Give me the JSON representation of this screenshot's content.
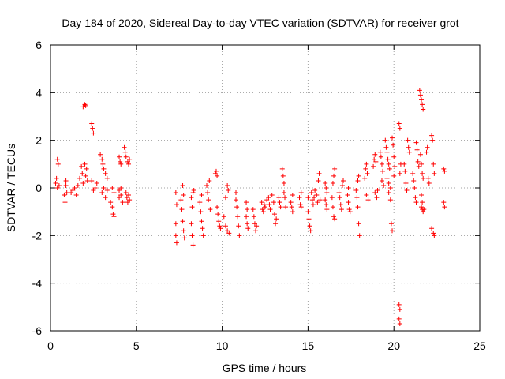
{
  "chart_data": {
    "type": "scatter",
    "title": "Day 184 of 2020, Sidereal Day-to-day VTEC variation (SDTVAR) for receiver grot",
    "xlabel": "GPS time / hours",
    "ylabel": "SDTVAR / TECUs",
    "xlim": [
      0,
      25
    ],
    "ylim": [
      -6,
      6
    ],
    "xticks": [
      0,
      5,
      10,
      15,
      20,
      25
    ],
    "xtick_labels": [
      "0",
      "5",
      "10",
      "15",
      "20",
      "25"
    ],
    "yticks": [
      -6,
      -4,
      -2,
      0,
      2,
      4,
      6
    ],
    "ytick_labels": [
      "-6",
      "-4",
      "-2",
      "0",
      "2",
      "4",
      "6"
    ],
    "grid": true,
    "marker": "plus",
    "color": "#ff0000",
    "series": [
      {
        "name": "SDTVAR",
        "points": [
          [
            0.3,
            0.2
          ],
          [
            0.35,
            0.4
          ],
          [
            0.4,
            1.2
          ],
          [
            0.45,
            1.0
          ],
          [
            0.5,
            0.1
          ],
          [
            0.4,
            0.0
          ],
          [
            0.8,
            -0.3
          ],
          [
            0.85,
            -0.6
          ],
          [
            0.9,
            0.1
          ],
          [
            0.95,
            -0.2
          ],
          [
            0.9,
            0.3
          ],
          [
            1.2,
            -0.2
          ],
          [
            1.3,
            -0.1
          ],
          [
            1.4,
            0.0
          ],
          [
            1.5,
            -0.3
          ],
          [
            1.6,
            0.1
          ],
          [
            1.7,
            0.4
          ],
          [
            1.8,
            0.9
          ],
          [
            1.85,
            0.6
          ],
          [
            1.9,
            0.2
          ],
          [
            2.0,
            1.0
          ],
          [
            2.05,
            0.5
          ],
          [
            2.1,
            0.8
          ],
          [
            2.15,
            0.3
          ],
          [
            1.9,
            3.4
          ],
          [
            2.0,
            3.5
          ],
          [
            2.05,
            3.45
          ],
          [
            2.4,
            2.7
          ],
          [
            2.45,
            2.5
          ],
          [
            2.5,
            2.3
          ],
          [
            2.4,
            0.3
          ],
          [
            2.5,
            -0.1
          ],
          [
            2.6,
            0.0
          ],
          [
            2.7,
            0.2
          ],
          [
            2.9,
            1.4
          ],
          [
            3.0,
            1.2
          ],
          [
            3.05,
            1.0
          ],
          [
            3.1,
            0.8
          ],
          [
            3.2,
            0.6
          ],
          [
            3.3,
            0.4
          ],
          [
            3.0,
            -0.2
          ],
          [
            3.1,
            0.0
          ],
          [
            3.2,
            -0.4
          ],
          [
            3.3,
            -0.1
          ],
          [
            3.5,
            -0.6
          ],
          [
            3.6,
            -0.8
          ],
          [
            3.65,
            -1.1
          ],
          [
            3.7,
            -1.2
          ],
          [
            3.6,
            0.0
          ],
          [
            3.7,
            -0.2
          ],
          [
            4.0,
            -0.4
          ],
          [
            4.1,
            -0.3
          ],
          [
            4.2,
            -0.6
          ],
          [
            4.1,
            0.0
          ],
          [
            4.0,
            -0.1
          ],
          [
            4.0,
            1.3
          ],
          [
            4.05,
            1.1
          ],
          [
            4.1,
            1.0
          ],
          [
            4.3,
            1.7
          ],
          [
            4.35,
            1.5
          ],
          [
            4.4,
            1.3
          ],
          [
            4.5,
            1.1
          ],
          [
            4.55,
            1.0
          ],
          [
            4.6,
            1.2
          ],
          [
            4.4,
            -0.2
          ],
          [
            4.45,
            -0.4
          ],
          [
            4.5,
            -0.6
          ],
          [
            4.55,
            -0.3
          ],
          [
            4.6,
            -0.5
          ],
          [
            7.3,
            -1.5
          ],
          [
            7.3,
            -2.0
          ],
          [
            7.35,
            -2.3
          ],
          [
            7.3,
            -0.2
          ],
          [
            7.35,
            -0.7
          ],
          [
            7.6,
            -0.5
          ],
          [
            7.65,
            -0.9
          ],
          [
            7.7,
            -1.4
          ],
          [
            7.75,
            -1.8
          ],
          [
            7.8,
            -2.1
          ],
          [
            7.7,
            0.1
          ],
          [
            7.75,
            -0.3
          ],
          [
            8.2,
            -1.5
          ],
          [
            8.25,
            -2.0
          ],
          [
            8.3,
            -2.4
          ],
          [
            8.2,
            -0.4
          ],
          [
            8.25,
            -0.8
          ],
          [
            8.3,
            -0.2
          ],
          [
            8.35,
            -0.1
          ],
          [
            8.7,
            -0.6
          ],
          [
            8.75,
            -1.0
          ],
          [
            8.8,
            -1.4
          ],
          [
            8.85,
            -1.7
          ],
          [
            8.9,
            -2.0
          ],
          [
            8.8,
            -0.3
          ],
          [
            9.1,
            0.1
          ],
          [
            9.15,
            -0.2
          ],
          [
            9.2,
            -0.5
          ],
          [
            9.3,
            -0.9
          ],
          [
            9.25,
            0.3
          ],
          [
            9.6,
            0.6
          ],
          [
            9.65,
            0.7
          ],
          [
            9.7,
            0.5
          ],
          [
            9.7,
            -0.8
          ],
          [
            9.75,
            -1.1
          ],
          [
            9.8,
            -1.4
          ],
          [
            9.85,
            -1.6
          ],
          [
            9.9,
            -1.7
          ],
          [
            10.1,
            -1.2
          ],
          [
            10.2,
            -1.6
          ],
          [
            10.3,
            -1.8
          ],
          [
            10.4,
            -1.9
          ],
          [
            10.2,
            -0.4
          ],
          [
            10.3,
            0.1
          ],
          [
            10.35,
            -0.1
          ],
          [
            10.8,
            -0.5
          ],
          [
            10.85,
            -0.8
          ],
          [
            10.9,
            -1.2
          ],
          [
            10.95,
            -1.6
          ],
          [
            11.0,
            -2.0
          ],
          [
            10.8,
            -0.2
          ],
          [
            11.4,
            -1.2
          ],
          [
            11.45,
            -1.5
          ],
          [
            11.5,
            -1.7
          ],
          [
            11.4,
            -0.6
          ],
          [
            11.45,
            -0.9
          ],
          [
            11.8,
            -0.9
          ],
          [
            11.85,
            -1.2
          ],
          [
            11.9,
            -1.5
          ],
          [
            11.95,
            -1.8
          ],
          [
            12.0,
            -1.6
          ],
          [
            12.3,
            -0.6
          ],
          [
            12.35,
            -0.9
          ],
          [
            12.4,
            -1.0
          ],
          [
            12.5,
            -0.8
          ],
          [
            12.45,
            -0.7
          ],
          [
            12.6,
            -0.5
          ],
          [
            12.7,
            -0.4
          ],
          [
            12.75,
            -0.7
          ],
          [
            12.8,
            -0.9
          ],
          [
            12.9,
            -0.3
          ],
          [
            13.0,
            -0.6
          ],
          [
            13.05,
            -1.1
          ],
          [
            13.1,
            -1.5
          ],
          [
            13.15,
            -1.3
          ],
          [
            13.3,
            -0.4
          ],
          [
            13.35,
            -0.6
          ],
          [
            13.4,
            -0.8
          ],
          [
            13.5,
            0.8
          ],
          [
            13.55,
            0.5
          ],
          [
            13.6,
            0.2
          ],
          [
            13.6,
            -0.2
          ],
          [
            13.65,
            -0.4
          ],
          [
            13.7,
            -0.8
          ],
          [
            14.0,
            -0.6
          ],
          [
            14.05,
            -0.8
          ],
          [
            14.1,
            -1.0
          ],
          [
            14.1,
            -0.3
          ],
          [
            14.5,
            -0.4
          ],
          [
            14.55,
            -0.7
          ],
          [
            14.6,
            -0.8
          ],
          [
            14.6,
            -0.2
          ],
          [
            15.0,
            -1.0
          ],
          [
            15.05,
            -1.3
          ],
          [
            15.1,
            -1.6
          ],
          [
            15.15,
            -1.8
          ],
          [
            15.0,
            -0.4
          ],
          [
            15.2,
            -0.2
          ],
          [
            15.25,
            -0.5
          ],
          [
            15.3,
            -0.7
          ],
          [
            15.35,
            -0.4
          ],
          [
            15.4,
            -0.1
          ],
          [
            15.5,
            -0.3
          ],
          [
            15.55,
            -0.6
          ],
          [
            15.6,
            0.3
          ],
          [
            15.65,
            0.6
          ],
          [
            15.7,
            -0.5
          ],
          [
            16.0,
            0.2
          ],
          [
            16.05,
            0.0
          ],
          [
            16.1,
            -0.2
          ],
          [
            16.0,
            -0.5
          ],
          [
            16.05,
            -0.7
          ],
          [
            16.1,
            -0.9
          ],
          [
            16.4,
            -0.4
          ],
          [
            16.45,
            -0.8
          ],
          [
            16.5,
            -1.2
          ],
          [
            16.55,
            -1.3
          ],
          [
            16.45,
            0.2
          ],
          [
            16.5,
            0.5
          ],
          [
            16.55,
            0.8
          ],
          [
            16.8,
            -0.2
          ],
          [
            16.85,
            -0.4
          ],
          [
            16.9,
            -0.7
          ],
          [
            16.95,
            -0.9
          ],
          [
            17.0,
            0.1
          ],
          [
            17.05,
            0.3
          ],
          [
            17.3,
            -0.3
          ],
          [
            17.35,
            -0.6
          ],
          [
            17.4,
            -0.9
          ],
          [
            17.45,
            -1.0
          ],
          [
            17.35,
            0.0
          ],
          [
            17.8,
            -0.1
          ],
          [
            17.85,
            -0.4
          ],
          [
            17.9,
            -0.8
          ],
          [
            17.95,
            -1.5
          ],
          [
            18.0,
            -2.0
          ],
          [
            17.9,
            0.3
          ],
          [
            17.95,
            0.5
          ],
          [
            18.3,
            0.4
          ],
          [
            18.35,
            0.8
          ],
          [
            18.4,
            1.0
          ],
          [
            18.45,
            0.6
          ],
          [
            18.4,
            -0.3
          ],
          [
            18.5,
            -0.5
          ],
          [
            18.8,
            0.9
          ],
          [
            18.85,
            1.2
          ],
          [
            18.9,
            1.4
          ],
          [
            18.95,
            1.1
          ],
          [
            18.9,
            -0.2
          ],
          [
            19.0,
            -0.4
          ],
          [
            19.05,
            -0.1
          ],
          [
            19.2,
            1.5
          ],
          [
            19.25,
            1.3
          ],
          [
            19.3,
            1.0
          ],
          [
            19.35,
            0.7
          ],
          [
            19.3,
            0.3
          ],
          [
            19.4,
            0.1
          ],
          [
            19.5,
            2.0
          ],
          [
            19.55,
            1.7
          ],
          [
            19.6,
            1.5
          ],
          [
            19.65,
            1.2
          ],
          [
            19.7,
            1.0
          ],
          [
            19.75,
            0.8
          ],
          [
            19.6,
            0.4
          ],
          [
            19.7,
            0.2
          ],
          [
            19.8,
            0.0
          ],
          [
            19.7,
            -0.2
          ],
          [
            19.8,
            -0.5
          ],
          [
            19.85,
            -1.5
          ],
          [
            19.9,
            -1.8
          ],
          [
            19.9,
            2.1
          ],
          [
            19.95,
            1.8
          ],
          [
            20.0,
            1.3
          ],
          [
            20.05,
            0.9
          ],
          [
            20.0,
            0.5
          ],
          [
            20.3,
            2.7
          ],
          [
            20.35,
            2.5
          ],
          [
            20.4,
            1.0
          ],
          [
            20.35,
            0.6
          ],
          [
            20.3,
            -4.9
          ],
          [
            20.35,
            -5.1
          ],
          [
            20.3,
            -5.5
          ],
          [
            20.35,
            -5.7
          ],
          [
            20.6,
            1.0
          ],
          [
            20.65,
            0.7
          ],
          [
            20.7,
            0.2
          ],
          [
            20.75,
            -0.1
          ],
          [
            20.8,
            2.0
          ],
          [
            20.85,
            1.7
          ],
          [
            20.9,
            1.5
          ],
          [
            21.1,
            0.6
          ],
          [
            21.15,
            0.3
          ],
          [
            21.2,
            0.0
          ],
          [
            21.25,
            -0.4
          ],
          [
            21.3,
            -0.6
          ],
          [
            21.3,
            1.9
          ],
          [
            21.35,
            1.6
          ],
          [
            21.4,
            1.1
          ],
          [
            21.45,
            0.9
          ],
          [
            21.5,
            4.1
          ],
          [
            21.55,
            3.9
          ],
          [
            21.6,
            3.7
          ],
          [
            21.65,
            3.5
          ],
          [
            21.7,
            3.3
          ],
          [
            21.55,
            1.4
          ],
          [
            21.6,
            1.0
          ],
          [
            21.65,
            0.6
          ],
          [
            21.7,
            0.4
          ],
          [
            21.6,
            -0.3
          ],
          [
            21.65,
            -0.6
          ],
          [
            21.6,
            -0.8
          ],
          [
            21.65,
            -0.9
          ],
          [
            21.7,
            -1.0
          ],
          [
            21.75,
            -0.9
          ],
          [
            21.9,
            1.5
          ],
          [
            21.95,
            1.7
          ],
          [
            22.0,
            0.4
          ],
          [
            22.05,
            0.2
          ],
          [
            22.2,
            2.2
          ],
          [
            22.25,
            2.0
          ],
          [
            22.3,
            1.0
          ],
          [
            22.35,
            0.6
          ],
          [
            22.2,
            -1.7
          ],
          [
            22.3,
            -1.9
          ],
          [
            22.35,
            -2.0
          ],
          [
            22.9,
            0.8
          ],
          [
            22.95,
            0.7
          ],
          [
            22.9,
            -0.6
          ],
          [
            22.95,
            -0.8
          ]
        ]
      }
    ]
  }
}
